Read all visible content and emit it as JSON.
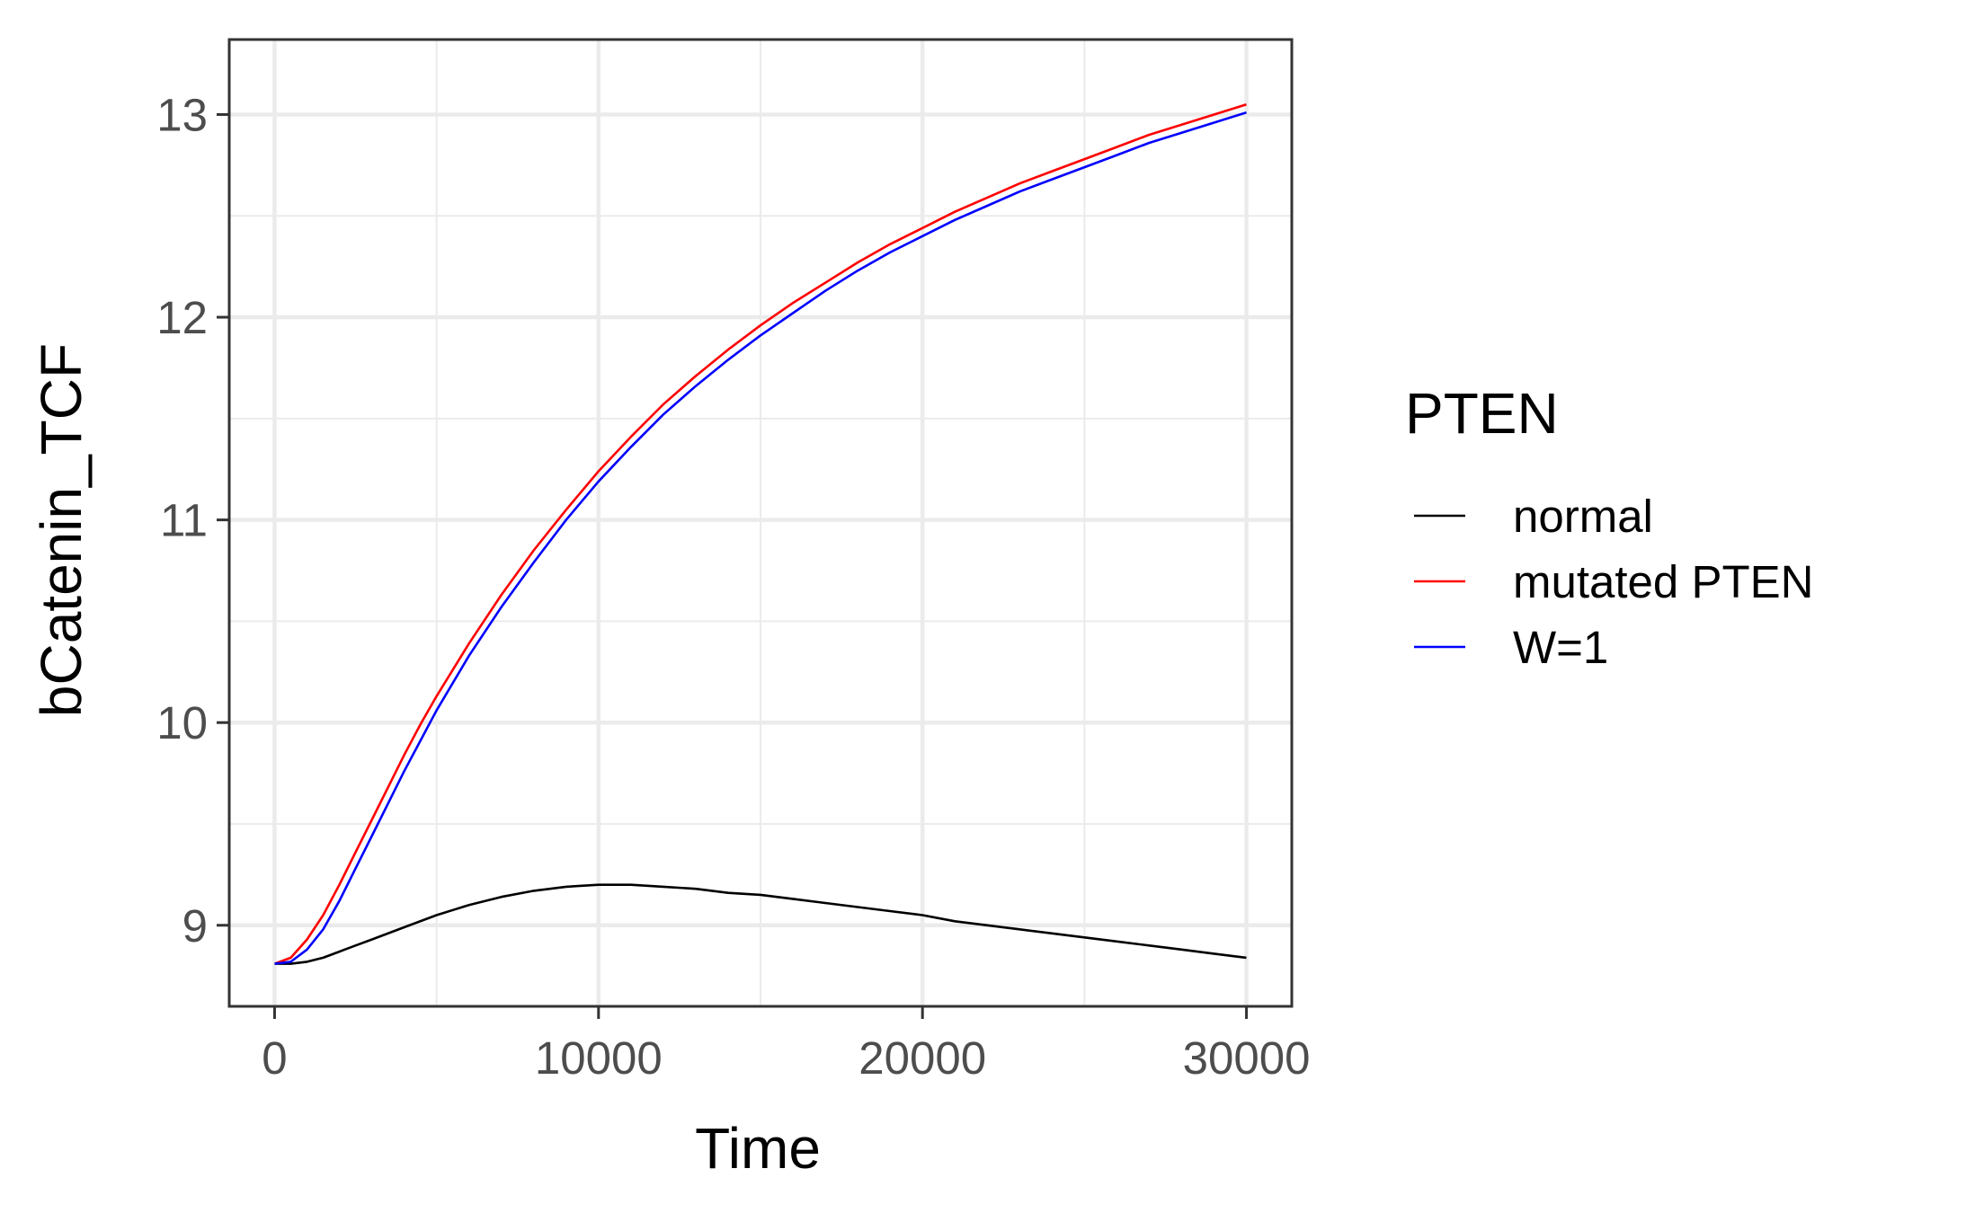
{
  "chart_data": {
    "type": "line",
    "xlabel": "Time",
    "ylabel": "bCatenin_TCF",
    "xlim": [
      -1400,
      31400
    ],
    "ylim": [
      8.6,
      13.37
    ],
    "x_ticks": [
      0,
      10000,
      20000,
      30000
    ],
    "x_minor_ticks": [
      5000,
      15000,
      25000
    ],
    "y_ticks": [
      9,
      10,
      11,
      12,
      13
    ],
    "y_minor_ticks": [
      9.5,
      10.5,
      11.5,
      12.5
    ],
    "grid": true,
    "legend": {
      "title": "PTEN",
      "placement": "right"
    },
    "series": [
      {
        "name": "normal",
        "color": "#000000",
        "points": [
          [
            0,
            8.81
          ],
          [
            500,
            8.81
          ],
          [
            1000,
            8.82
          ],
          [
            1500,
            8.84
          ],
          [
            2000,
            8.87
          ],
          [
            2500,
            8.9
          ],
          [
            3000,
            8.93
          ],
          [
            4000,
            8.99
          ],
          [
            5000,
            9.05
          ],
          [
            6000,
            9.1
          ],
          [
            7000,
            9.14
          ],
          [
            8000,
            9.17
          ],
          [
            9000,
            9.19
          ],
          [
            10000,
            9.2
          ],
          [
            11000,
            9.2
          ],
          [
            12000,
            9.19
          ],
          [
            13000,
            9.18
          ],
          [
            14000,
            9.16
          ],
          [
            15000,
            9.15
          ],
          [
            16000,
            9.13
          ],
          [
            17000,
            9.11
          ],
          [
            18000,
            9.09
          ],
          [
            19000,
            9.07
          ],
          [
            20000,
            9.05
          ],
          [
            21000,
            9.02
          ],
          [
            22000,
            9.0
          ],
          [
            23000,
            8.98
          ],
          [
            24000,
            8.96
          ],
          [
            25000,
            8.94
          ],
          [
            26000,
            8.92
          ],
          [
            27000,
            8.9
          ],
          [
            28000,
            8.88
          ],
          [
            29000,
            8.86
          ],
          [
            30000,
            8.84
          ]
        ]
      },
      {
        "name": "mutated PTEN",
        "color": "#ff0000",
        "points": [
          [
            0,
            8.81
          ],
          [
            500,
            8.84
          ],
          [
            1000,
            8.93
          ],
          [
            1500,
            9.05
          ],
          [
            2000,
            9.2
          ],
          [
            2500,
            9.36
          ],
          [
            3000,
            9.52
          ],
          [
            3500,
            9.68
          ],
          [
            4000,
            9.84
          ],
          [
            4500,
            9.99
          ],
          [
            5000,
            10.13
          ],
          [
            6000,
            10.39
          ],
          [
            7000,
            10.63
          ],
          [
            8000,
            10.85
          ],
          [
            9000,
            11.05
          ],
          [
            10000,
            11.24
          ],
          [
            11000,
            11.41
          ],
          [
            12000,
            11.57
          ],
          [
            13000,
            11.71
          ],
          [
            14000,
            11.84
          ],
          [
            15000,
            11.96
          ],
          [
            16000,
            12.07
          ],
          [
            17000,
            12.17
          ],
          [
            18000,
            12.27
          ],
          [
            19000,
            12.36
          ],
          [
            20000,
            12.44
          ],
          [
            21000,
            12.52
          ],
          [
            22000,
            12.59
          ],
          [
            23000,
            12.66
          ],
          [
            24000,
            12.72
          ],
          [
            25000,
            12.78
          ],
          [
            26000,
            12.84
          ],
          [
            27000,
            12.9
          ],
          [
            28000,
            12.95
          ],
          [
            29000,
            13.0
          ],
          [
            30000,
            13.05
          ]
        ]
      },
      {
        "name": "W=1",
        "color": "#0000ff",
        "points": [
          [
            0,
            8.81
          ],
          [
            500,
            8.82
          ],
          [
            1000,
            8.88
          ],
          [
            1500,
            8.98
          ],
          [
            2000,
            9.12
          ],
          [
            2500,
            9.28
          ],
          [
            3000,
            9.44
          ],
          [
            3500,
            9.6
          ],
          [
            4000,
            9.76
          ],
          [
            4500,
            9.91
          ],
          [
            5000,
            10.06
          ],
          [
            6000,
            10.33
          ],
          [
            7000,
            10.57
          ],
          [
            8000,
            10.79
          ],
          [
            9000,
            11.0
          ],
          [
            10000,
            11.19
          ],
          [
            11000,
            11.36
          ],
          [
            12000,
            11.52
          ],
          [
            13000,
            11.66
          ],
          [
            14000,
            11.79
          ],
          [
            15000,
            11.91
          ],
          [
            16000,
            12.02
          ],
          [
            17000,
            12.13
          ],
          [
            18000,
            12.23
          ],
          [
            19000,
            12.32
          ],
          [
            20000,
            12.4
          ],
          [
            21000,
            12.48
          ],
          [
            22000,
            12.55
          ],
          [
            23000,
            12.62
          ],
          [
            24000,
            12.68
          ],
          [
            25000,
            12.74
          ],
          [
            26000,
            12.8
          ],
          [
            27000,
            12.86
          ],
          [
            28000,
            12.91
          ],
          [
            29000,
            12.96
          ],
          [
            30000,
            13.01
          ]
        ]
      }
    ]
  }
}
